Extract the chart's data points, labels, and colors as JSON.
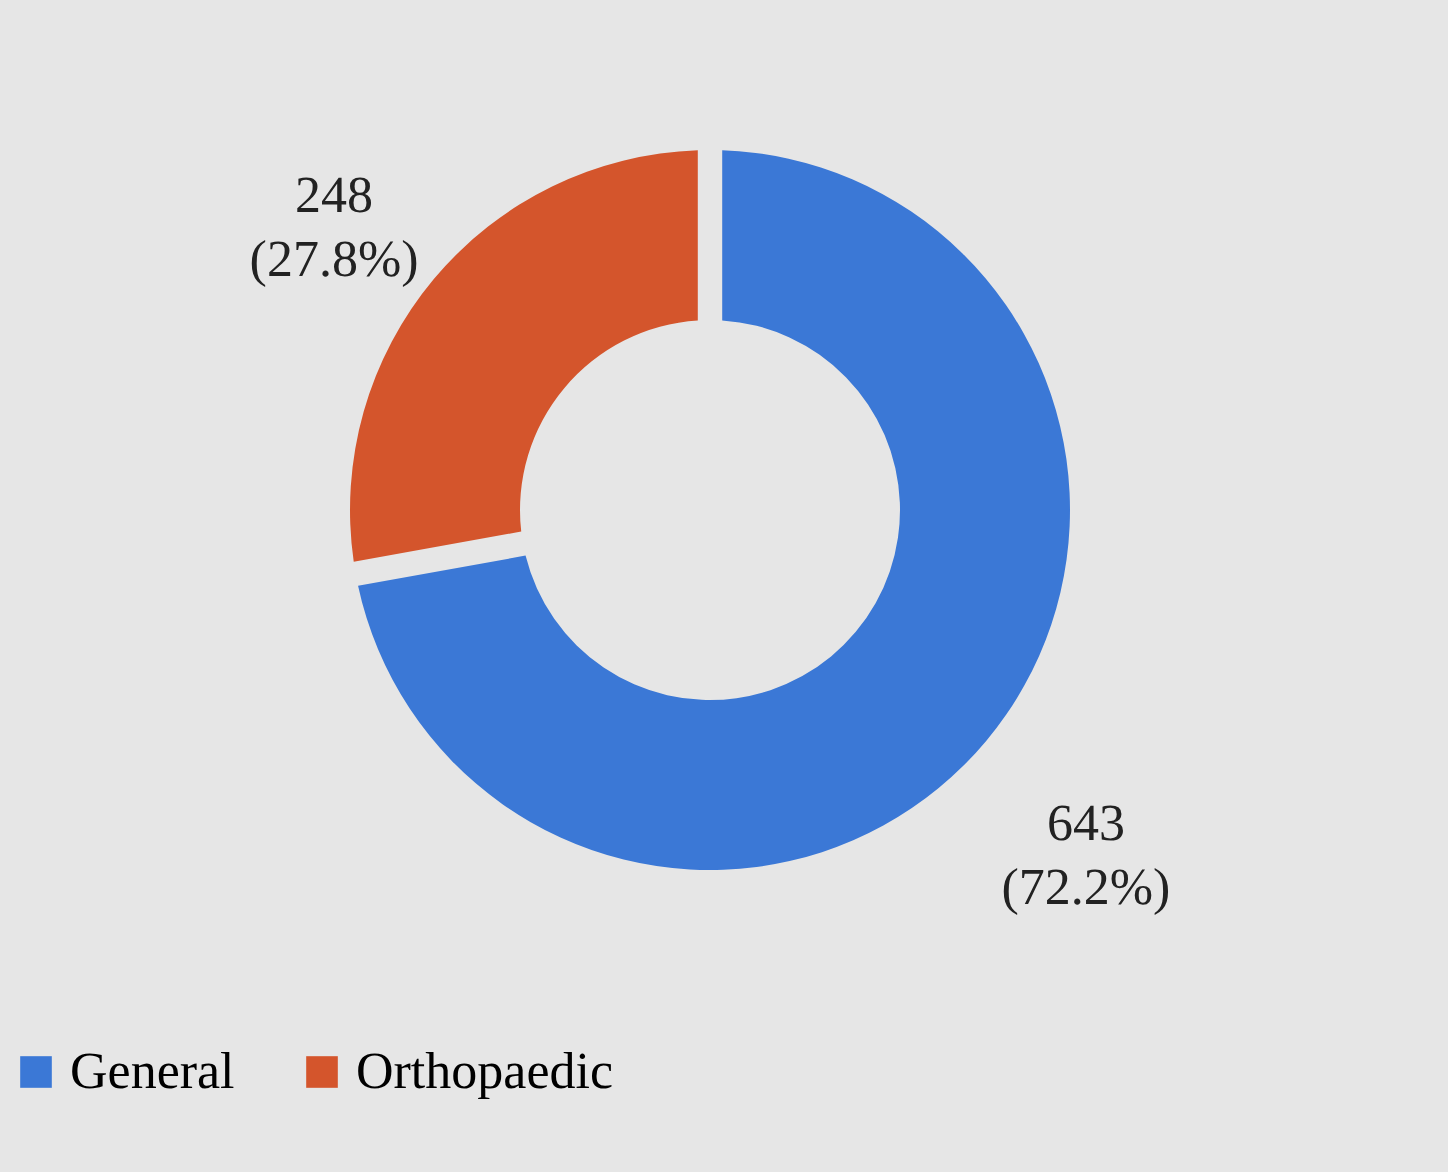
{
  "chart_data": {
    "type": "donut",
    "categories": [
      "General",
      "Orthopaedic"
    ],
    "values": [
      643,
      248
    ],
    "colors": [
      "#3b78d6",
      "#d4552c"
    ],
    "value_labels": [
      "643 (72.2%)",
      "248 (27.8%)"
    ],
    "legend": "bottom"
  }
}
